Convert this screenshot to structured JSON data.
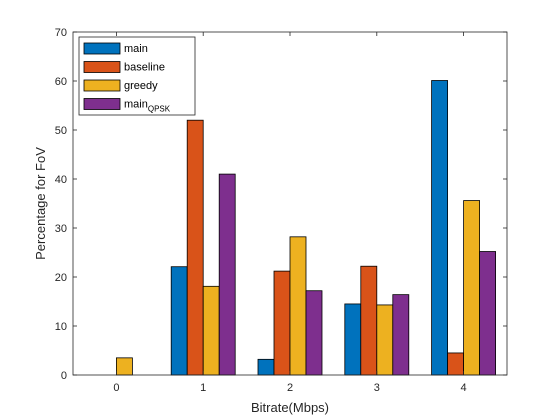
{
  "chart_data": {
    "type": "bar",
    "title": "",
    "xlabel": "Bitrate(Mbps)",
    "ylabel": "Percentage for FoV",
    "categories": [
      "0",
      "1",
      "2",
      "3",
      "4"
    ],
    "ylim": [
      0,
      70
    ],
    "yticks": [
      "0",
      "10",
      "20",
      "30",
      "40",
      "50",
      "60",
      "70"
    ],
    "grid": false,
    "legend_position": "top-left",
    "series": [
      {
        "name": "main",
        "name_main": "main",
        "name_sub": "",
        "color": "#0072BD",
        "values": [
          0,
          22.1,
          3.2,
          14.5,
          60.1
        ]
      },
      {
        "name": "baseline",
        "name_main": "baseline",
        "name_sub": "",
        "color": "#D95319",
        "values": [
          0,
          52.0,
          21.2,
          22.2,
          4.5
        ]
      },
      {
        "name": "greedy",
        "name_main": "greedy",
        "name_sub": "",
        "color": "#EDB120",
        "values": [
          3.5,
          18.1,
          28.2,
          14.3,
          35.6
        ]
      },
      {
        "name": "mainQPSK",
        "name_main": "main",
        "name_sub": "QPSK",
        "color": "#7E2F8E",
        "values": [
          0,
          41.0,
          17.2,
          16.4,
          25.2
        ]
      }
    ]
  }
}
